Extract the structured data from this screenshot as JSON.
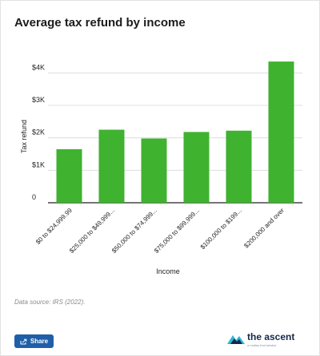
{
  "title": "Average tax refund by income",
  "source": "Data source: IRS (2022).",
  "share": {
    "label": "Share",
    "icon": "share-icon"
  },
  "brand": {
    "name": "the ascent",
    "tagline": "a motley fool service"
  },
  "colors": {
    "bar": "#3fb22f",
    "grid": "#d9d9d9",
    "axis": "#222222",
    "brand_navy": "#15294a",
    "brand_blue": "#1f5fa8",
    "brand_teal": "#2fb5d6"
  },
  "chart_data": {
    "type": "bar",
    "categories": [
      "$0 to $24,999.99",
      "$25,000 to $49,999...",
      "$50,000 to $74,999...",
      "$75,000 to $99,999...",
      "$100,000 to $199...",
      "$200,000 and over"
    ],
    "values": [
      1650,
      2250,
      1980,
      2180,
      2220,
      4350
    ],
    "ylim": [
      0,
      4500
    ],
    "yticks": [
      0,
      1000,
      2000,
      3000,
      4000
    ],
    "ytick_labels": [
      "0",
      "$1K",
      "$2K",
      "$3K",
      "$4K"
    ],
    "xlabel": "Income",
    "ylabel": "Tax refund",
    "grid": true,
    "legend": "none"
  }
}
